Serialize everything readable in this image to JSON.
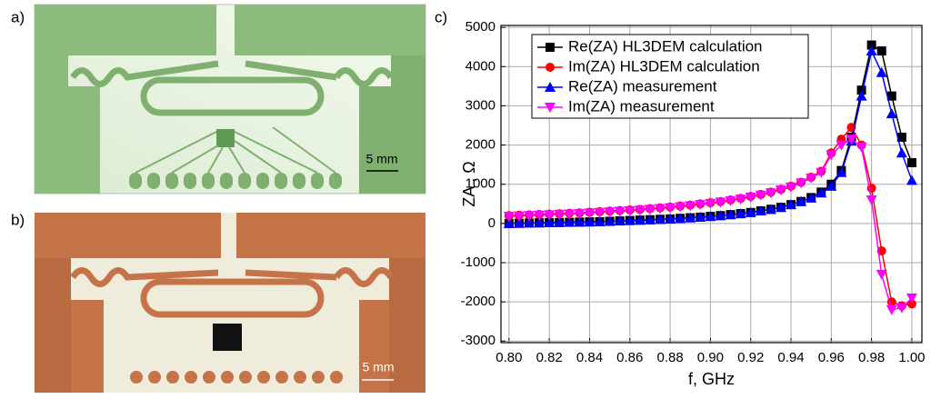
{
  "panels": {
    "a": {
      "label": "a)",
      "scale": "5 mm"
    },
    "b": {
      "label": "b)",
      "scale": "5 mm"
    },
    "c": {
      "label": "c)"
    }
  },
  "chart_data": {
    "type": "line",
    "x_label": "f, GHz",
    "y_label": "ZA , Ω",
    "x": [
      0.8,
      0.805,
      0.81,
      0.815,
      0.82,
      0.825,
      0.83,
      0.835,
      0.84,
      0.845,
      0.85,
      0.855,
      0.86,
      0.865,
      0.87,
      0.875,
      0.88,
      0.885,
      0.89,
      0.895,
      0.9,
      0.905,
      0.91,
      0.915,
      0.92,
      0.925,
      0.93,
      0.935,
      0.94,
      0.945,
      0.95,
      0.955,
      0.96,
      0.965,
      0.97,
      0.975,
      0.98,
      0.985,
      0.99,
      0.995,
      1.0
    ],
    "series": [
      {
        "name": "Re(ZA) HL3DEM calculation",
        "color": "#000000",
        "marker": "square",
        "values": [
          0,
          5,
          10,
          15,
          20,
          25,
          30,
          35,
          40,
          45,
          55,
          65,
          75,
          85,
          95,
          105,
          115,
          130,
          145,
          160,
          180,
          200,
          225,
          250,
          280,
          320,
          360,
          410,
          480,
          560,
          660,
          800,
          1000,
          1350,
          2200,
          3400,
          4550,
          4400,
          3250,
          2200,
          1550
        ]
      },
      {
        "name": "Im(ZA) HL3DEM calculation",
        "color": "#ff0000",
        "marker": "circle",
        "values": [
          200,
          210,
          220,
          230,
          240,
          250,
          260,
          270,
          285,
          300,
          315,
          330,
          345,
          360,
          380,
          400,
          420,
          445,
          470,
          500,
          530,
          560,
          600,
          640,
          690,
          740,
          800,
          870,
          950,
          1050,
          1180,
          1330,
          1800,
          2150,
          2450,
          2000,
          900,
          -700,
          -2000,
          -2100,
          -2050
        ]
      },
      {
        "name": "Re(ZA) measurement",
        "color": "#0000ff",
        "marker": "triangle-up",
        "values": [
          0,
          5,
          10,
          15,
          20,
          25,
          30,
          35,
          40,
          45,
          55,
          65,
          75,
          85,
          95,
          105,
          115,
          130,
          145,
          160,
          180,
          200,
          225,
          250,
          280,
          320,
          360,
          410,
          480,
          560,
          650,
          780,
          950,
          1300,
          2100,
          3250,
          4400,
          3850,
          2800,
          1800,
          1100
        ]
      },
      {
        "name": "Im(ZA) measurement",
        "color": "#ff00ff",
        "marker": "triangle-down",
        "values": [
          180,
          190,
          200,
          210,
          220,
          230,
          240,
          250,
          265,
          280,
          295,
          310,
          325,
          340,
          360,
          380,
          400,
          425,
          450,
          480,
          510,
          540,
          580,
          620,
          670,
          720,
          780,
          850,
          930,
          1030,
          1160,
          1300,
          1750,
          2000,
          2150,
          1950,
          600,
          -1300,
          -2200,
          -2150,
          -1900
        ]
      }
    ],
    "xlim": [
      0.796,
      1.005
    ],
    "ylim": [
      -3040,
      5050
    ],
    "xticks": [
      {
        "value": 0.8,
        "label": "0.80"
      },
      {
        "value": 0.82,
        "label": "0.82"
      },
      {
        "value": 0.84,
        "label": "0.84"
      },
      {
        "value": 0.86,
        "label": "0.86"
      },
      {
        "value": 0.88,
        "label": "0.88"
      },
      {
        "value": 0.9,
        "label": "0.90"
      },
      {
        "value": 0.92,
        "label": "0.92"
      },
      {
        "value": 0.94,
        "label": "0.94"
      },
      {
        "value": 0.96,
        "label": "0.96"
      },
      {
        "value": 0.98,
        "label": "0.98"
      },
      {
        "value": 1.0,
        "label": "1.00"
      }
    ],
    "yticks": [
      -3000,
      -2000,
      -1000,
      0,
      1000,
      2000,
      3000,
      4000,
      5000
    ],
    "grid": true,
    "legend": "top-left"
  }
}
